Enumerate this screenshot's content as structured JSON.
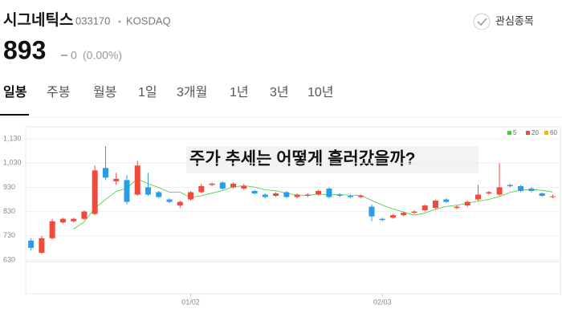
{
  "header": {
    "name": "시그네틱스",
    "code": "033170",
    "market": "KOSDAQ",
    "watch": "관심종목"
  },
  "price": {
    "value": "893",
    "change": "0",
    "change_pct": "(0.00%)"
  },
  "tabs": [
    "일봉",
    "주봉",
    "월봉",
    "1일",
    "3개월",
    "1년",
    "3년",
    "10년"
  ],
  "chart_data": {
    "type": "candlestick",
    "annotation": "주가 추세는 어떻게 흘러갔을까?",
    "up_color": "#f04a3c",
    "down_color": "#2a9de8",
    "legend": [
      {
        "name": "5",
        "color": "#3ecf3e"
      },
      {
        "name": "20",
        "color": "#f04a3c"
      },
      {
        "name": "60",
        "color": "#f5b40a"
      }
    ],
    "categories": [
      null,
      null,
      null,
      null,
      null,
      null,
      null,
      null,
      null,
      null,
      null,
      null,
      null,
      null,
      null,
      "01/02",
      null,
      null,
      null,
      null,
      null,
      null,
      null,
      null,
      null,
      null,
      null,
      null,
      null,
      null,
      null,
      null,
      null,
      "02/03",
      null,
      null,
      null,
      null,
      null,
      null,
      null,
      null,
      null,
      null,
      null,
      null,
      null,
      null,
      null,
      null
    ],
    "open": [
      710,
      660,
      720,
      785,
      790,
      800,
      820,
      1010,
      955,
      960,
      900,
      930,
      910,
      880,
      855,
      880,
      910,
      940,
      950,
      930,
      925,
      915,
      900,
      895,
      910,
      890,
      895,
      900,
      925,
      900,
      895,
      890,
      850,
      800,
      805,
      815,
      825,
      835,
      845,
      880,
      845,
      855,
      880,
      905,
      900,
      940,
      935,
      925,
      905,
      890
    ],
    "close": [
      680,
      720,
      790,
      800,
      800,
      830,
      1000,
      970,
      965,
      870,
      1020,
      900,
      890,
      870,
      870,
      910,
      935,
      945,
      925,
      945,
      935,
      905,
      890,
      905,
      890,
      900,
      900,
      915,
      890,
      895,
      890,
      895,
      810,
      795,
      815,
      825,
      830,
      855,
      875,
      870,
      850,
      870,
      900,
      910,
      930,
      935,
      915,
      915,
      895,
      893
    ],
    "high": [
      720,
      730,
      800,
      805,
      805,
      835,
      1020,
      1100,
      990,
      980,
      1040,
      990,
      915,
      885,
      875,
      915,
      945,
      950,
      955,
      950,
      945,
      920,
      905,
      910,
      915,
      905,
      905,
      920,
      930,
      905,
      900,
      900,
      860,
      805,
      820,
      830,
      835,
      860,
      880,
      885,
      855,
      875,
      940,
      915,
      1030,
      945,
      940,
      930,
      910,
      900
    ],
    "low": [
      670,
      655,
      715,
      780,
      785,
      795,
      815,
      960,
      940,
      860,
      895,
      895,
      885,
      865,
      845,
      875,
      905,
      935,
      920,
      925,
      920,
      900,
      885,
      890,
      885,
      885,
      890,
      895,
      885,
      890,
      885,
      885,
      790,
      790,
      800,
      810,
      820,
      830,
      840,
      865,
      840,
      850,
      875,
      900,
      895,
      930,
      910,
      910,
      890,
      885
    ],
    "ylim": [
      630,
      1180
    ],
    "yticks": [
      630,
      730,
      830,
      930,
      {
        "value": 1030,
        "label": "1,030"
      },
      {
        "value": 1130,
        "label": "1,130"
      }
    ],
    "grid": true
  }
}
